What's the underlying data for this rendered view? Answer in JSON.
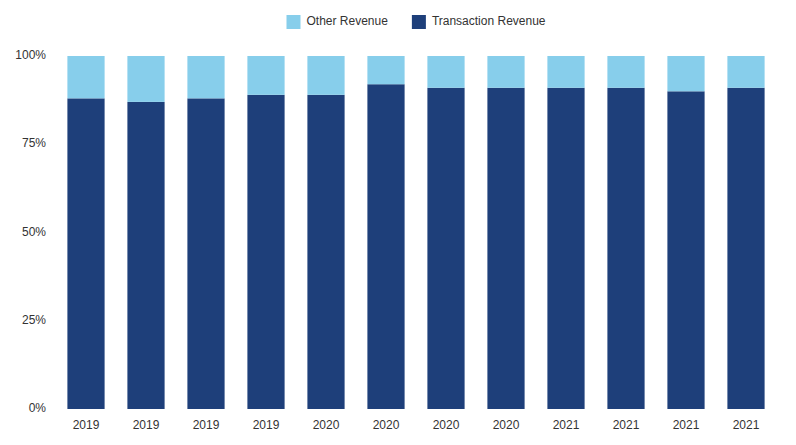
{
  "chart_data": {
    "type": "bar",
    "stacked": true,
    "categories": [
      "2019",
      "2019",
      "2019",
      "2019",
      "2020",
      "2020",
      "2020",
      "2020",
      "2021",
      "2021",
      "2021",
      "2021"
    ],
    "series": [
      {
        "name": "Other Revenue",
        "color": "#87ceeb",
        "values": [
          12,
          13,
          12,
          11,
          11,
          8,
          9,
          9,
          9,
          9,
          10,
          9
        ]
      },
      {
        "name": "Transaction Revenue",
        "color": "#1e3f7a",
        "values": [
          88,
          87,
          88,
          89,
          89,
          92,
          91,
          91,
          91,
          91,
          90,
          91
        ]
      }
    ],
    "ylim": [
      0,
      100
    ],
    "yticks": [
      {
        "value": 0,
        "label": "0%"
      },
      {
        "value": 25,
        "label": "25%"
      },
      {
        "value": 50,
        "label": "50%"
      },
      {
        "value": 75,
        "label": "75%"
      },
      {
        "value": 100,
        "label": "100%"
      }
    ],
    "grid": false,
    "legend": "top"
  }
}
